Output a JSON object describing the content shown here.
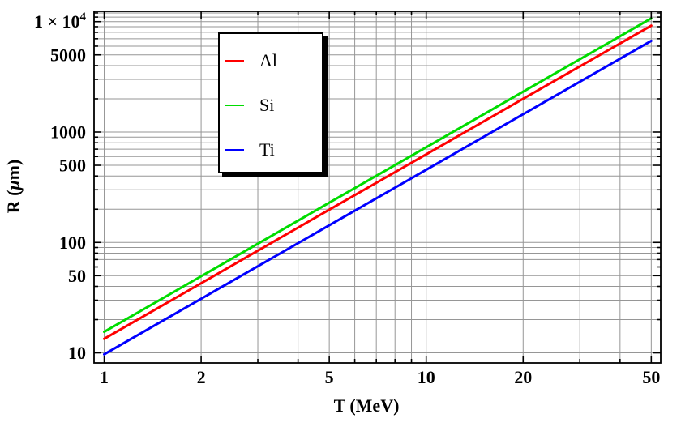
{
  "chart_data": {
    "type": "line",
    "title": "",
    "xlabel": "T (MeV)",
    "ylabel": "R (μm)",
    "x_scale": "log",
    "y_scale": "log",
    "x_range": [
      0.93,
      53.5
    ],
    "y_range": [
      8.1,
      12400
    ],
    "grid": true,
    "legend_position": "top-left",
    "x": [
      1,
      2,
      5,
      10,
      20,
      50
    ],
    "series": [
      {
        "name": "Al",
        "color": "#ff0000",
        "values": [
          13.4,
          42.7,
          198,
          628,
          2000,
          9200
        ]
      },
      {
        "name": "Si",
        "color": "#00dc00",
        "values": [
          15.5,
          49.4,
          229,
          728,
          2320,
          10700
        ]
      },
      {
        "name": "Ti",
        "color": "#0000ff",
        "values": [
          9.7,
          30.9,
          143,
          455,
          1450,
          6700
        ]
      }
    ],
    "x_ticks": [
      {
        "value": 1,
        "label": "1"
      },
      {
        "value": 2,
        "label": "2"
      },
      {
        "value": 5,
        "label": "5"
      },
      {
        "value": 10,
        "label": "10"
      },
      {
        "value": 20,
        "label": "20"
      },
      {
        "value": 50,
        "label": "50"
      }
    ],
    "y_ticks": [
      {
        "value": 10,
        "label": "10"
      },
      {
        "value": 50,
        "label": "50"
      },
      {
        "value": 100,
        "label": "100"
      },
      {
        "value": 500,
        "label": "500"
      },
      {
        "value": 1000,
        "label": "1000"
      },
      {
        "value": 5000,
        "label": "5000"
      },
      {
        "value": 10000,
        "label": "1 × 10",
        "sup": "4"
      }
    ],
    "x_minor_ticks": [
      3,
      4,
      6,
      7,
      8,
      9,
      30,
      40
    ],
    "y_minor_ticks": [
      20,
      30,
      40,
      60,
      70,
      80,
      90,
      200,
      300,
      400,
      600,
      700,
      800,
      900,
      2000,
      3000,
      4000,
      6000,
      7000,
      8000,
      9000,
      11000,
      12000
    ],
    "colors": {
      "grid": "#969696",
      "frame": "#000000",
      "background": "#ffffff"
    }
  }
}
